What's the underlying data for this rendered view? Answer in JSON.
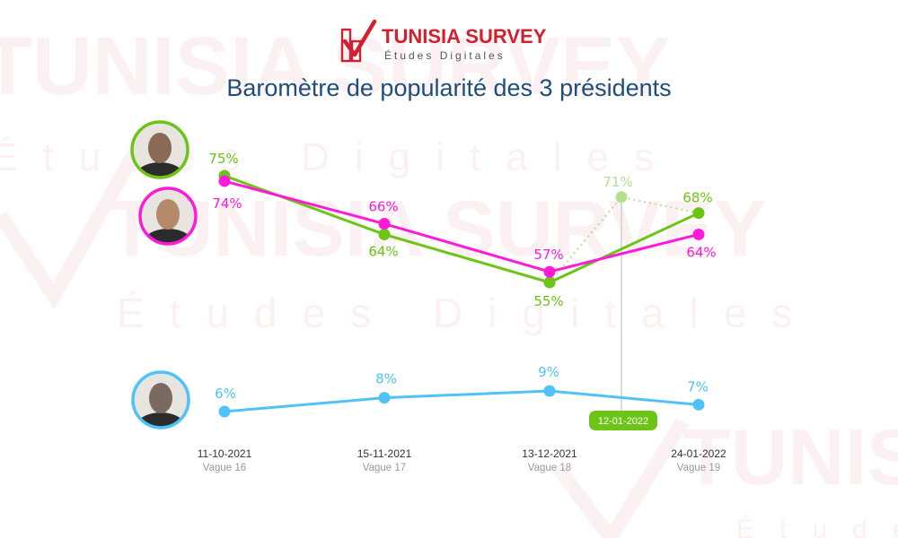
{
  "brand": {
    "name": "TUNISIA SURVEY",
    "tagline": "Études Digitales"
  },
  "chart_data": {
    "type": "line",
    "title": "Baromètre de popularité des 3 présidents",
    "categories": [
      {
        "date": "11-10-2021",
        "wave": "Vague 16"
      },
      {
        "date": "15-11-2021",
        "wave": "Vague 17"
      },
      {
        "date": "13-12-2021",
        "wave": "Vague 18"
      },
      {
        "date": "24-01-2022",
        "wave": "Vague 19"
      }
    ],
    "series": [
      {
        "key": "green",
        "color": "#6cc417",
        "values": [
          75,
          64,
          55,
          68
        ],
        "labels": [
          "75%",
          "64%",
          "55%",
          "68%"
        ]
      },
      {
        "key": "magenta",
        "color": "#ff1ad9",
        "values": [
          74,
          66,
          57,
          64
        ],
        "labels": [
          "74%",
          "66%",
          "57%",
          "64%"
        ]
      },
      {
        "key": "blue",
        "color": "#4fc3f7",
        "values": [
          6,
          8,
          9,
          7
        ],
        "labels": [
          "6%",
          "8%",
          "9%",
          "7%"
        ]
      }
    ],
    "interim": {
      "series": "green",
      "date": "12-01-2022",
      "value": 71,
      "label": "71%",
      "color": "#b6e08f",
      "pill_color": "#6cc417"
    },
    "grid": false
  },
  "photos": [
    {
      "series": "green",
      "border": "#6cc417",
      "bg": "#8a6a55"
    },
    {
      "series": "magenta",
      "border": "#ff1ad9",
      "bg": "#b58a6a"
    },
    {
      "series": "blue",
      "border": "#4fc3f7",
      "bg": "#7a6a62"
    }
  ]
}
